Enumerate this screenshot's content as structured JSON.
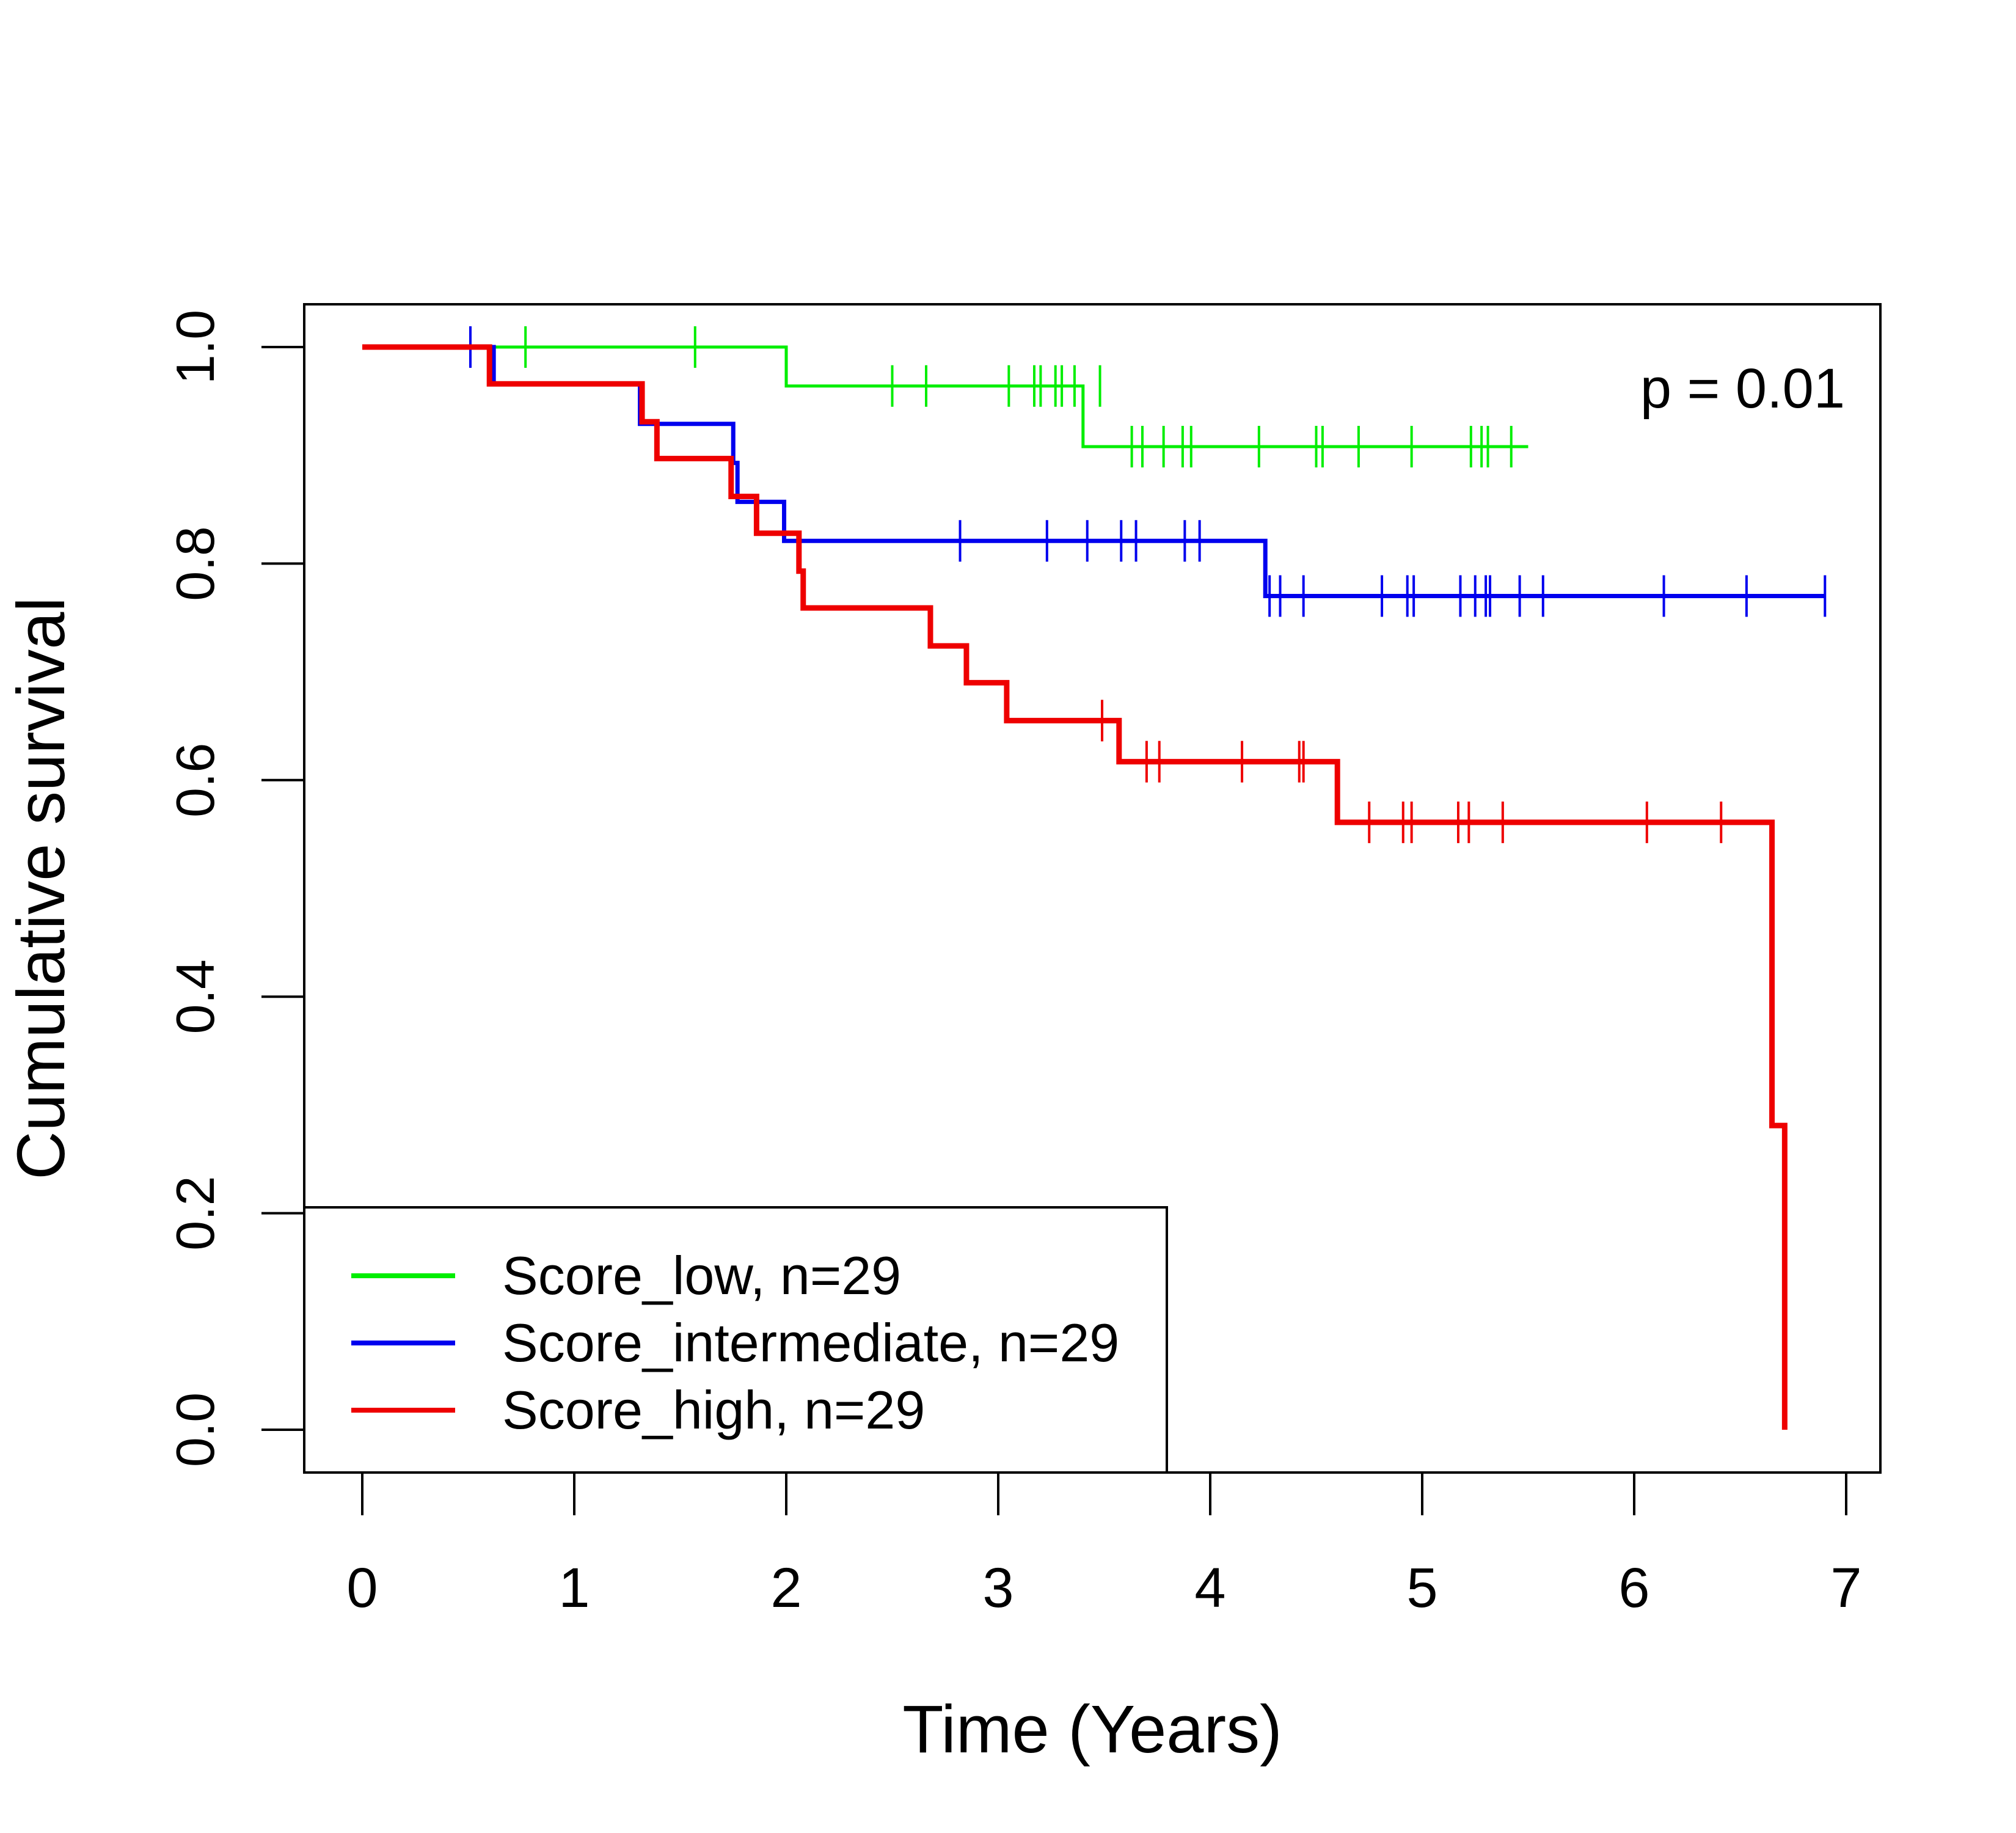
{
  "chart_data": {
    "type": "line",
    "subtype": "kaplan-meier step",
    "xlabel": "Time (Years)",
    "ylabel": "Cumulative survival",
    "xlim": [
      0,
      7
    ],
    "ylim": [
      0,
      1
    ],
    "xticks": [
      "0",
      "1",
      "2",
      "3",
      "4",
      "5",
      "6",
      "7"
    ],
    "yticks": [
      "0.0",
      "0.2",
      "0.4",
      "0.6",
      "0.8",
      "1.0"
    ],
    "annotation": "p = 0.01",
    "grid": false,
    "legend_position": "bottom-left",
    "series": [
      {
        "name": "Score_low, n=29",
        "color": "#00ee00",
        "steps": [
          [
            0,
            1.0
          ],
          [
            2.0,
            0.964
          ],
          [
            3.4,
            0.908
          ],
          [
            5.5,
            0.908
          ]
        ],
        "censors": [
          [
            0.77,
            1.0
          ],
          [
            1.57,
            1.0
          ],
          [
            2.5,
            0.964
          ],
          [
            2.66,
            0.964
          ],
          [
            3.05,
            0.964
          ],
          [
            3.17,
            0.964
          ],
          [
            3.2,
            0.964
          ],
          [
            3.27,
            0.964
          ],
          [
            3.3,
            0.964
          ],
          [
            3.36,
            0.964
          ],
          [
            3.48,
            0.964
          ],
          [
            3.63,
            0.908
          ],
          [
            3.68,
            0.908
          ],
          [
            3.78,
            0.908
          ],
          [
            3.87,
            0.908
          ],
          [
            3.91,
            0.908
          ],
          [
            4.23,
            0.908
          ],
          [
            4.5,
            0.908
          ],
          [
            4.53,
            0.908
          ],
          [
            4.7,
            0.908
          ],
          [
            4.95,
            0.908
          ],
          [
            5.23,
            0.908
          ],
          [
            5.28,
            0.908
          ],
          [
            5.31,
            0.908
          ],
          [
            5.42,
            0.908
          ]
        ]
      },
      {
        "name": "Score_intermediate, n=29",
        "color": "#0000ee",
        "steps": [
          [
            0,
            1.0
          ],
          [
            0.62,
            0.966
          ],
          [
            1.31,
            0.929
          ],
          [
            1.75,
            0.893
          ],
          [
            1.77,
            0.857
          ],
          [
            1.99,
            0.821
          ],
          [
            4.26,
            0.77
          ],
          [
            6.9,
            0.77
          ]
        ],
        "censors": [
          [
            0.51,
            1.0
          ],
          [
            2.82,
            0.821
          ],
          [
            3.23,
            0.821
          ],
          [
            3.42,
            0.821
          ],
          [
            3.58,
            0.821
          ],
          [
            3.65,
            0.821
          ],
          [
            3.88,
            0.821
          ],
          [
            3.95,
            0.821
          ],
          [
            4.28,
            0.77
          ],
          [
            4.33,
            0.77
          ],
          [
            4.44,
            0.77
          ],
          [
            4.81,
            0.77
          ],
          [
            4.93,
            0.77
          ],
          [
            4.96,
            0.77
          ],
          [
            5.18,
            0.77
          ],
          [
            5.25,
            0.77
          ],
          [
            5.3,
            0.77
          ],
          [
            5.32,
            0.77
          ],
          [
            5.46,
            0.77
          ],
          [
            5.57,
            0.77
          ],
          [
            6.14,
            0.77
          ],
          [
            6.53,
            0.77
          ],
          [
            6.9,
            0.77
          ]
        ]
      },
      {
        "name": "Score_high, n=29",
        "color": "#ee0000",
        "steps": [
          [
            0,
            1.0
          ],
          [
            0.6,
            0.966
          ],
          [
            1.32,
            0.931
          ],
          [
            1.39,
            0.897
          ],
          [
            1.74,
            0.862
          ],
          [
            1.86,
            0.828
          ],
          [
            2.06,
            0.793
          ],
          [
            2.08,
            0.759
          ],
          [
            2.68,
            0.724
          ],
          [
            2.85,
            0.69
          ],
          [
            3.04,
            0.655
          ],
          [
            3.57,
            0.617
          ],
          [
            4.6,
            0.561
          ],
          [
            6.65,
            0.281
          ],
          [
            6.71,
            0.0
          ]
        ],
        "censors": [
          [
            3.49,
            0.655
          ],
          [
            3.7,
            0.617
          ],
          [
            3.76,
            0.617
          ],
          [
            4.15,
            0.617
          ],
          [
            4.42,
            0.617
          ],
          [
            4.44,
            0.617
          ],
          [
            4.75,
            0.561
          ],
          [
            4.91,
            0.561
          ],
          [
            4.95,
            0.561
          ],
          [
            5.17,
            0.561
          ],
          [
            5.22,
            0.561
          ],
          [
            5.38,
            0.561
          ],
          [
            6.06,
            0.561
          ],
          [
            6.41,
            0.561
          ]
        ]
      }
    ]
  }
}
